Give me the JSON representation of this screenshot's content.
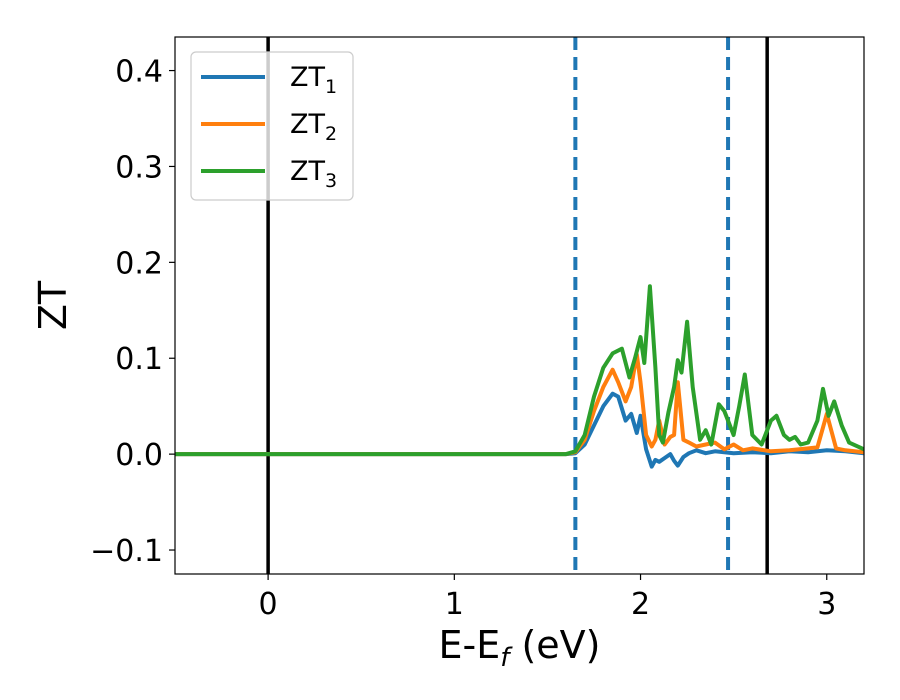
{
  "chart_data": {
    "type": "line",
    "title": "",
    "xlabel": {
      "main": "E-E",
      "sub": "f",
      "suffix": " (eV)"
    },
    "ylabel": "ZT",
    "xlim": [
      -0.5,
      3.2
    ],
    "ylim": [
      -0.125,
      0.435
    ],
    "xticks": [
      0,
      1,
      2,
      3
    ],
    "xtick_labels": [
      "0",
      "1",
      "2",
      "3"
    ],
    "yticks": [
      -0.1,
      0.0,
      0.1,
      0.2,
      0.3,
      0.4
    ],
    "ytick_labels": [
      "−0.1",
      "0.0",
      "0.1",
      "0.2",
      "0.3",
      "0.4"
    ],
    "grid": false,
    "legend_position": "top-left",
    "vertical_lines": [
      {
        "x": 0.0,
        "style": "solid",
        "color": "#000000"
      },
      {
        "x": 2.68,
        "style": "solid",
        "color": "#000000"
      },
      {
        "x": 1.65,
        "style": "dashed",
        "color": "#1f77b4"
      },
      {
        "x": 2.47,
        "style": "dashed",
        "color": "#1f77b4"
      }
    ],
    "series": [
      {
        "name": "ZT",
        "name_sub": "1",
        "color": "#1f77b4",
        "x": [
          -0.5,
          1.6,
          1.65,
          1.7,
          1.75,
          1.8,
          1.85,
          1.88,
          1.92,
          1.95,
          1.98,
          2.0,
          2.03,
          2.06,
          2.08,
          2.1,
          2.13,
          2.16,
          2.18,
          2.2,
          2.23,
          2.26,
          2.3,
          2.35,
          2.4,
          2.45,
          2.5,
          2.6,
          2.7,
          2.8,
          2.9,
          3.0,
          3.1,
          3.2
        ],
        "y": [
          0.0,
          0.0,
          0.001,
          0.01,
          0.03,
          0.05,
          0.063,
          0.06,
          0.035,
          0.042,
          0.022,
          0.04,
          0.005,
          -0.013,
          -0.006,
          -0.008,
          -0.004,
          0.0,
          -0.007,
          -0.012,
          -0.003,
          0.001,
          0.004,
          0.001,
          0.003,
          0.002,
          0.001,
          0.002,
          0.001,
          0.003,
          0.002,
          0.004,
          0.003,
          0.001
        ]
      },
      {
        "name": "ZT",
        "name_sub": "2",
        "color": "#ff7f0e",
        "x": [
          -0.5,
          1.6,
          1.65,
          1.7,
          1.75,
          1.8,
          1.85,
          1.88,
          1.92,
          1.95,
          1.98,
          2.0,
          2.03,
          2.06,
          2.08,
          2.1,
          2.13,
          2.16,
          2.18,
          2.2,
          2.23,
          2.26,
          2.3,
          2.35,
          2.4,
          2.45,
          2.5,
          2.55,
          2.6,
          2.7,
          2.8,
          2.9,
          2.95,
          3.0,
          3.05,
          3.1,
          3.2
        ],
        "y": [
          0.0,
          0.0,
          0.002,
          0.015,
          0.045,
          0.07,
          0.088,
          0.075,
          0.055,
          0.07,
          0.104,
          0.075,
          0.02,
          0.008,
          0.015,
          0.035,
          0.01,
          0.018,
          0.02,
          0.075,
          0.015,
          0.012,
          0.008,
          0.01,
          0.012,
          0.005,
          0.01,
          0.004,
          0.006,
          0.003,
          0.004,
          0.006,
          0.007,
          0.042,
          0.006,
          0.004,
          0.002
        ]
      },
      {
        "name": "ZT",
        "name_sub": "3",
        "color": "#2ca02c",
        "x": [
          -0.5,
          1.6,
          1.65,
          1.7,
          1.75,
          1.8,
          1.85,
          1.9,
          1.94,
          1.97,
          2.0,
          2.02,
          2.05,
          2.08,
          2.1,
          2.12,
          2.15,
          2.18,
          2.2,
          2.22,
          2.25,
          2.28,
          2.32,
          2.35,
          2.38,
          2.42,
          2.45,
          2.5,
          2.53,
          2.56,
          2.6,
          2.65,
          2.7,
          2.73,
          2.77,
          2.8,
          2.83,
          2.86,
          2.9,
          2.95,
          2.98,
          3.01,
          3.04,
          3.08,
          3.12,
          3.2
        ],
        "y": [
          0.0,
          0.0,
          0.003,
          0.02,
          0.06,
          0.09,
          0.105,
          0.11,
          0.08,
          0.1,
          0.122,
          0.095,
          0.175,
          0.09,
          0.02,
          0.012,
          0.044,
          0.07,
          0.098,
          0.085,
          0.138,
          0.07,
          0.015,
          0.025,
          0.01,
          0.052,
          0.045,
          0.02,
          0.05,
          0.083,
          0.02,
          0.01,
          0.035,
          0.04,
          0.02,
          0.015,
          0.018,
          0.01,
          0.012,
          0.035,
          0.068,
          0.04,
          0.055,
          0.03,
          0.012,
          0.005
        ]
      }
    ]
  }
}
